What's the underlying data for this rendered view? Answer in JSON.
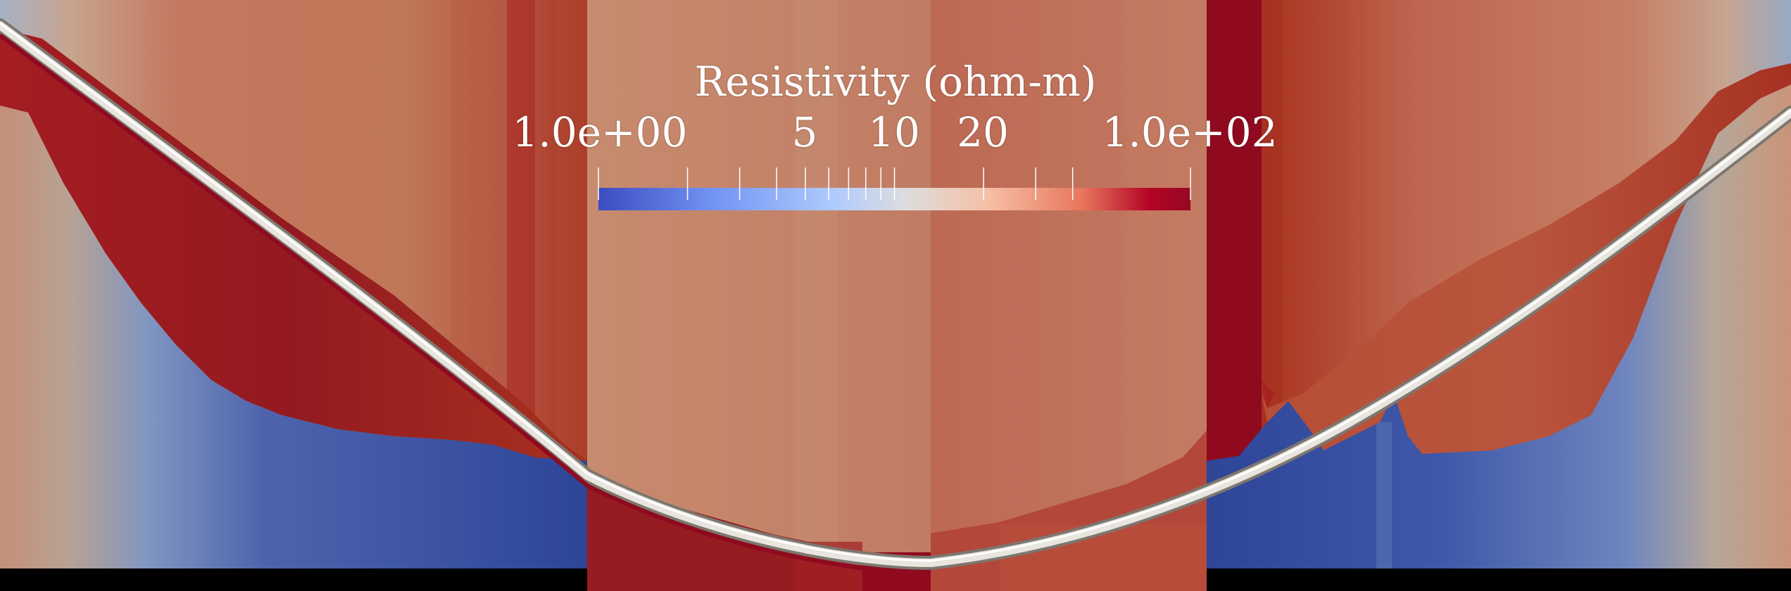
{
  "legend": {
    "title": "Resistivity (ohm-m)",
    "min_label": "1.0e+00",
    "max_label": "1.0e+02",
    "labels": [
      "5",
      "10",
      "20"
    ],
    "scale": "log",
    "range": [
      1,
      100
    ],
    "minor_ticks": [
      2,
      3,
      4,
      5,
      6,
      7,
      8,
      9,
      10,
      20,
      30,
      40,
      100
    ],
    "colormap": [
      "#3b4cc0",
      "#7396f5",
      "#b0cbfc",
      "#dddddd",
      "#f6bfa5",
      "#e7745b",
      "#b40426",
      "#960823"
    ]
  },
  "colors": {
    "deep_red": "#8f0a1f",
    "red": "#a8221f",
    "orange_red": "#bf6d58",
    "salmon": "#c5826a",
    "blue": "#2f4a9c",
    "light_blue": "#9fb0c9",
    "well_path": "#e7e3de",
    "background": "#000000"
  },
  "well": {
    "name": "well-trajectory"
  }
}
